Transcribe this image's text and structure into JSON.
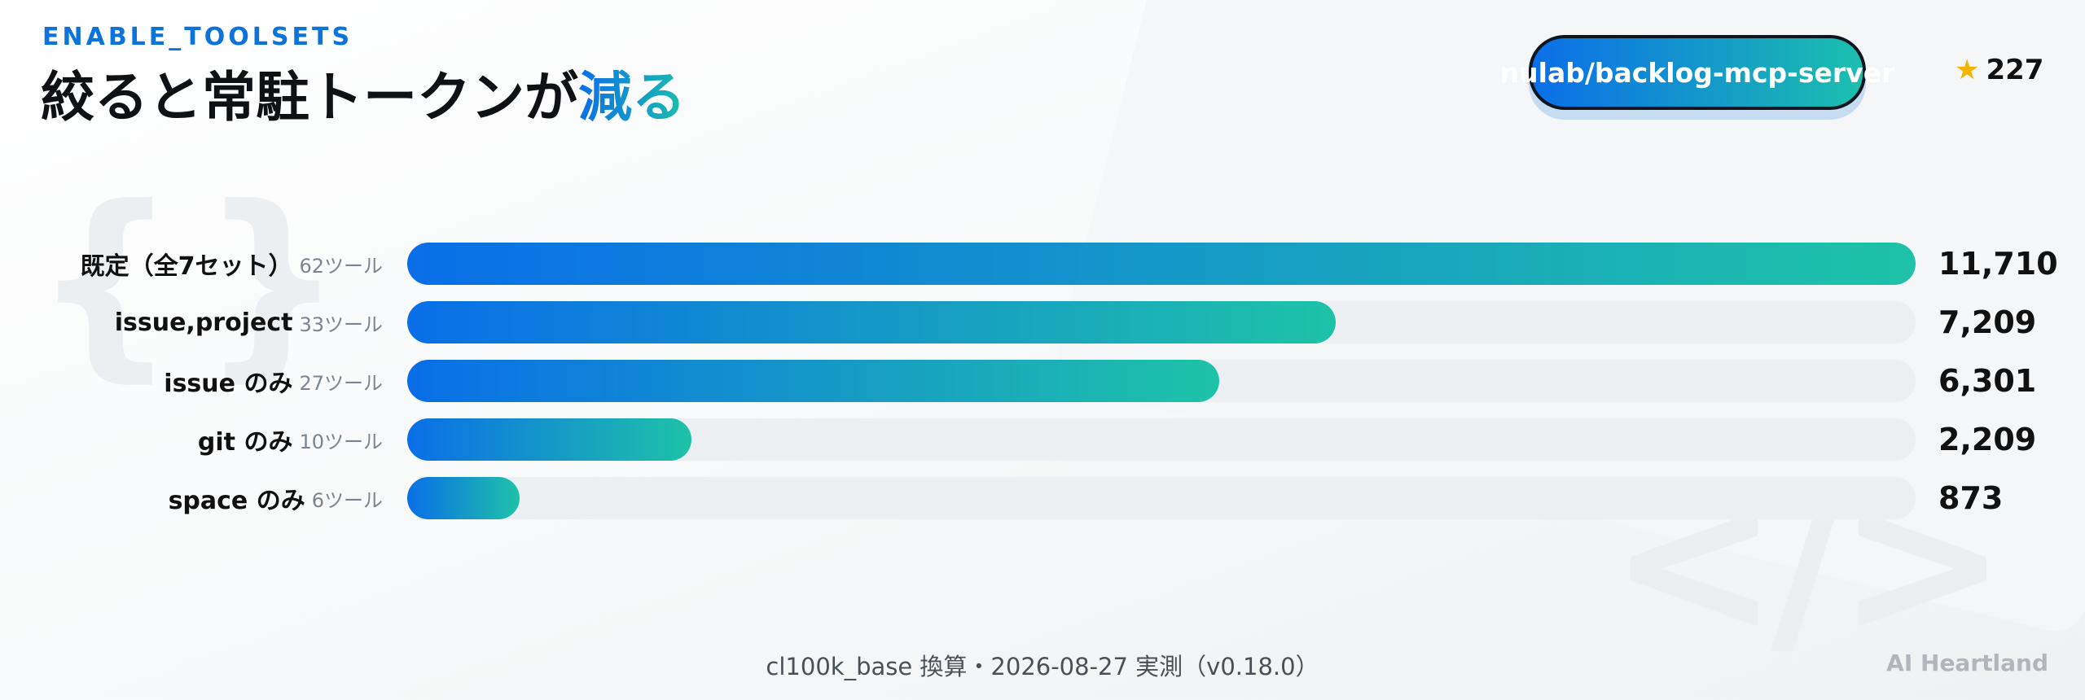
{
  "header": {
    "eyebrow": "ENABLE_TOOLSETS",
    "title_main": "絞ると常駐トークンが",
    "title_accent": "減る"
  },
  "repo": {
    "name": "nulab/backlog-mcp-server",
    "stars": "227",
    "star_icon": "star-icon"
  },
  "chart_data": {
    "type": "bar",
    "orientation": "horizontal",
    "categories": [
      "既定（全7セット）",
      "issue,project",
      "issue のみ",
      "git のみ",
      "space のみ"
    ],
    "tool_counts": [
      "62ツール",
      "33ツール",
      "27ツール",
      "10ツール",
      "6ツール"
    ],
    "values": [
      11710,
      7209,
      6301,
      2209,
      873
    ],
    "value_labels": [
      "11,710",
      "7,209",
      "6,301",
      "2,209",
      "873"
    ],
    "xlim": [
      0,
      11710
    ],
    "grid": false,
    "colors": {
      "bar_start": "#0a6ee8",
      "bar_end": "#1ec2a8",
      "track": "#edf0f2"
    }
  },
  "footer": {
    "note": "cl100k_base 換算・2026-08-27 実測（v0.18.0）",
    "brand": "AI Heartland"
  }
}
